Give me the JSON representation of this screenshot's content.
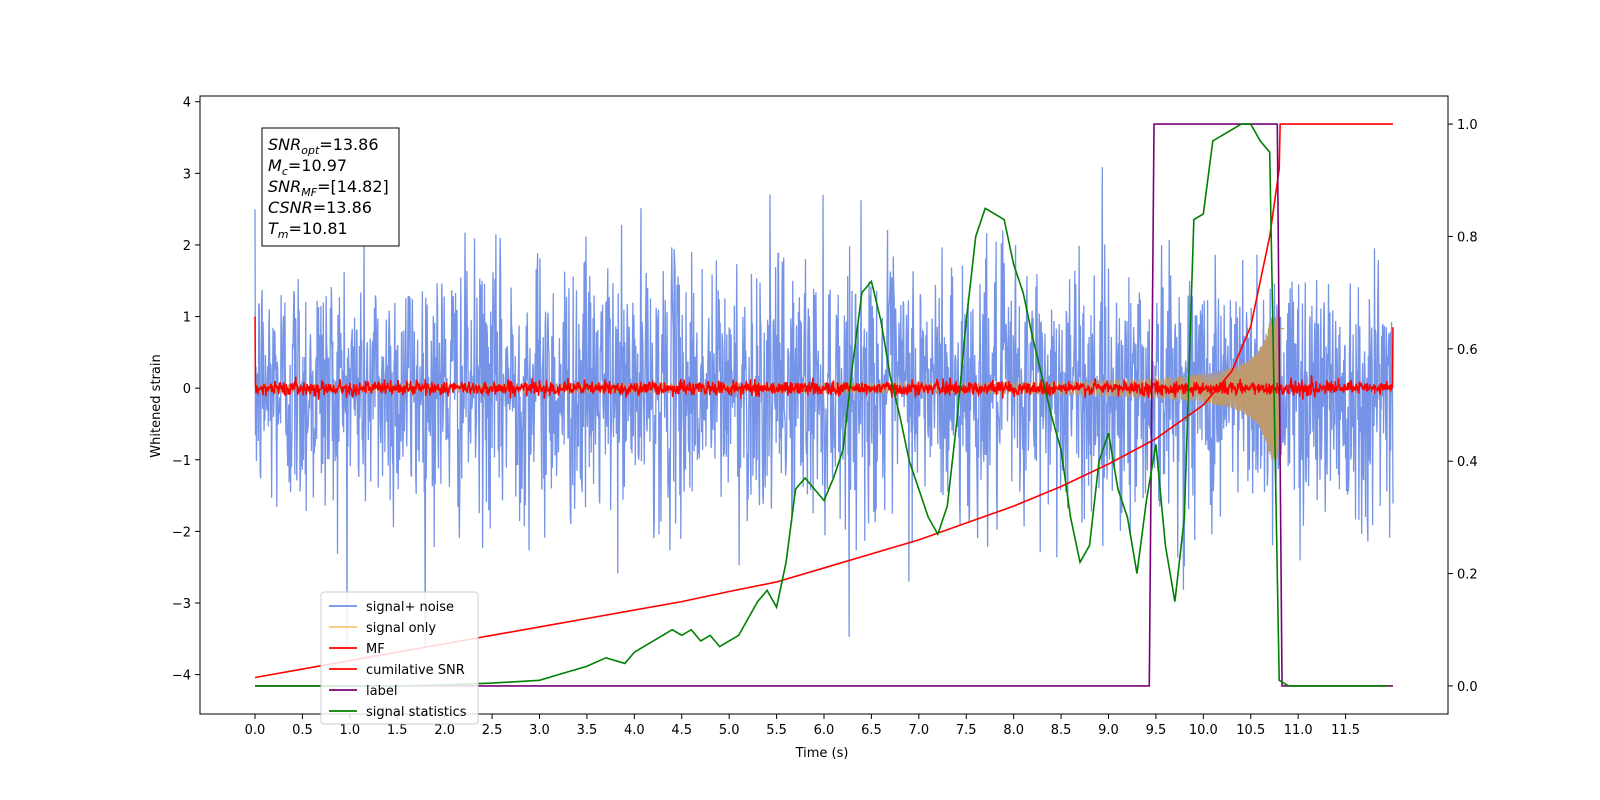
{
  "chart_data": {
    "type": "line",
    "xlabel": "Time (s)",
    "ylabel": "Whitened strain",
    "xlim": [
      -0.58,
      12.58
    ],
    "ylim": [
      -4.55,
      4.08
    ],
    "y2lim": [
      -0.05,
      1.05
    ],
    "x_ticks": [
      "0.0",
      "0.5",
      "1.0",
      "1.5",
      "2.0",
      "2.5",
      "3.0",
      "3.5",
      "4.0",
      "4.5",
      "5.0",
      "5.5",
      "6.0",
      "6.5",
      "7.0",
      "7.5",
      "8.0",
      "8.5",
      "9.0",
      "9.5",
      "10.0",
      "10.5",
      "11.0",
      "11.5"
    ],
    "y_ticks": [
      "−4",
      "−3",
      "−2",
      "−1",
      "0",
      "1",
      "2",
      "3",
      "4"
    ],
    "y2_ticks": [
      "0.0",
      "0.2",
      "0.4",
      "0.6",
      "0.8",
      "1.0"
    ],
    "grid": false,
    "legend_position": "lower-left",
    "annotation": [
      {
        "base": "SNR",
        "sub": "opt",
        "value": "=13.86"
      },
      {
        "base": "M",
        "sub": "c",
        "value": "=10.97"
      },
      {
        "base": "SNR",
        "sub": "MF",
        "value": "=[14.82]"
      },
      {
        "base": "CSNR",
        "sub": "",
        "value": "=13.86"
      },
      {
        "base": "T",
        "sub": "m",
        "value": "=10.81"
      }
    ],
    "series": [
      {
        "name": "signal+ noise",
        "color": "#6f8ee6",
        "axis": "left",
        "kind": "noise",
        "t_range": [
          0,
          12
        ],
        "amplitude_std": 0.9,
        "range_observed": [
          -3.6,
          3.7
        ]
      },
      {
        "name": "signal only",
        "color": "#f5c67a",
        "fill_color": "#bf9a6e",
        "axis": "left",
        "kind": "chirp",
        "t_range": [
          0,
          10.85
        ],
        "merger_time": 10.81,
        "envelope_peak": 1.0
      },
      {
        "name": "MF",
        "color": "#ff0000",
        "axis": "left",
        "kind": "noise",
        "t_range": [
          0,
          12
        ],
        "amplitude_std": 0.05,
        "start_value": 1.0,
        "end_value": 0.85
      },
      {
        "name": "cumilative SNR",
        "color": "#ff0000",
        "axis": "right",
        "kind": "line",
        "x": [
          0.0,
          0.5,
          1.0,
          1.5,
          2.0,
          2.5,
          3.0,
          3.5,
          4.0,
          4.5,
          5.0,
          5.5,
          6.0,
          6.5,
          7.0,
          7.5,
          8.0,
          8.5,
          9.0,
          9.5,
          10.0,
          10.3,
          10.5,
          10.7,
          10.8,
          10.81,
          12.0
        ],
        "y": [
          0.015,
          0.03,
          0.045,
          0.06,
          0.075,
          0.09,
          0.105,
          0.12,
          0.135,
          0.15,
          0.168,
          0.185,
          0.21,
          0.235,
          0.26,
          0.29,
          0.32,
          0.355,
          0.395,
          0.44,
          0.5,
          0.56,
          0.64,
          0.8,
          0.92,
          1.0,
          1.0
        ]
      },
      {
        "name": "label",
        "color": "#7a007a",
        "axis": "right",
        "kind": "line",
        "x": [
          0.0,
          9.43,
          9.48,
          10.78,
          10.83,
          12.0
        ],
        "y": [
          0.0,
          0.0,
          1.0,
          1.0,
          0.0,
          0.0
        ]
      },
      {
        "name": "signal statistics",
        "color": "#008000",
        "axis": "right",
        "kind": "line",
        "x": [
          0.0,
          0.5,
          1.0,
          1.5,
          2.0,
          2.5,
          3.0,
          3.2,
          3.5,
          3.7,
          3.9,
          4.0,
          4.2,
          4.3,
          4.4,
          4.5,
          4.6,
          4.7,
          4.8,
          4.9,
          5.0,
          5.1,
          5.2,
          5.3,
          5.4,
          5.5,
          5.6,
          5.7,
          5.8,
          5.9,
          6.0,
          6.1,
          6.2,
          6.3,
          6.4,
          6.5,
          6.6,
          6.7,
          6.8,
          6.9,
          7.0,
          7.1,
          7.2,
          7.3,
          7.4,
          7.5,
          7.6,
          7.7,
          7.8,
          7.9,
          8.0,
          8.1,
          8.2,
          8.3,
          8.4,
          8.5,
          8.6,
          8.7,
          8.8,
          8.9,
          9.0,
          9.1,
          9.2,
          9.3,
          9.4,
          9.5,
          9.6,
          9.7,
          9.8,
          9.9,
          10.0,
          10.1,
          10.2,
          10.3,
          10.4,
          10.5,
          10.6,
          10.7,
          10.8,
          10.9,
          11.0,
          11.5,
          11.95
        ],
        "y": [
          0.0,
          0.0,
          0.0,
          0.0,
          0.002,
          0.005,
          0.01,
          0.02,
          0.035,
          0.05,
          0.04,
          0.06,
          0.08,
          0.09,
          0.1,
          0.09,
          0.1,
          0.08,
          0.09,
          0.07,
          0.08,
          0.09,
          0.12,
          0.15,
          0.17,
          0.14,
          0.22,
          0.35,
          0.37,
          0.35,
          0.33,
          0.37,
          0.42,
          0.57,
          0.7,
          0.72,
          0.65,
          0.55,
          0.48,
          0.4,
          0.35,
          0.3,
          0.27,
          0.32,
          0.47,
          0.65,
          0.8,
          0.85,
          0.84,
          0.83,
          0.75,
          0.7,
          0.62,
          0.55,
          0.48,
          0.42,
          0.3,
          0.22,
          0.25,
          0.4,
          0.45,
          0.35,
          0.3,
          0.2,
          0.33,
          0.43,
          0.25,
          0.15,
          0.3,
          0.83,
          0.84,
          0.97,
          0.98,
          0.99,
          1.0,
          1.0,
          0.97,
          0.95,
          0.01,
          0.0,
          0.0,
          0.0,
          0.0
        ]
      }
    ]
  }
}
